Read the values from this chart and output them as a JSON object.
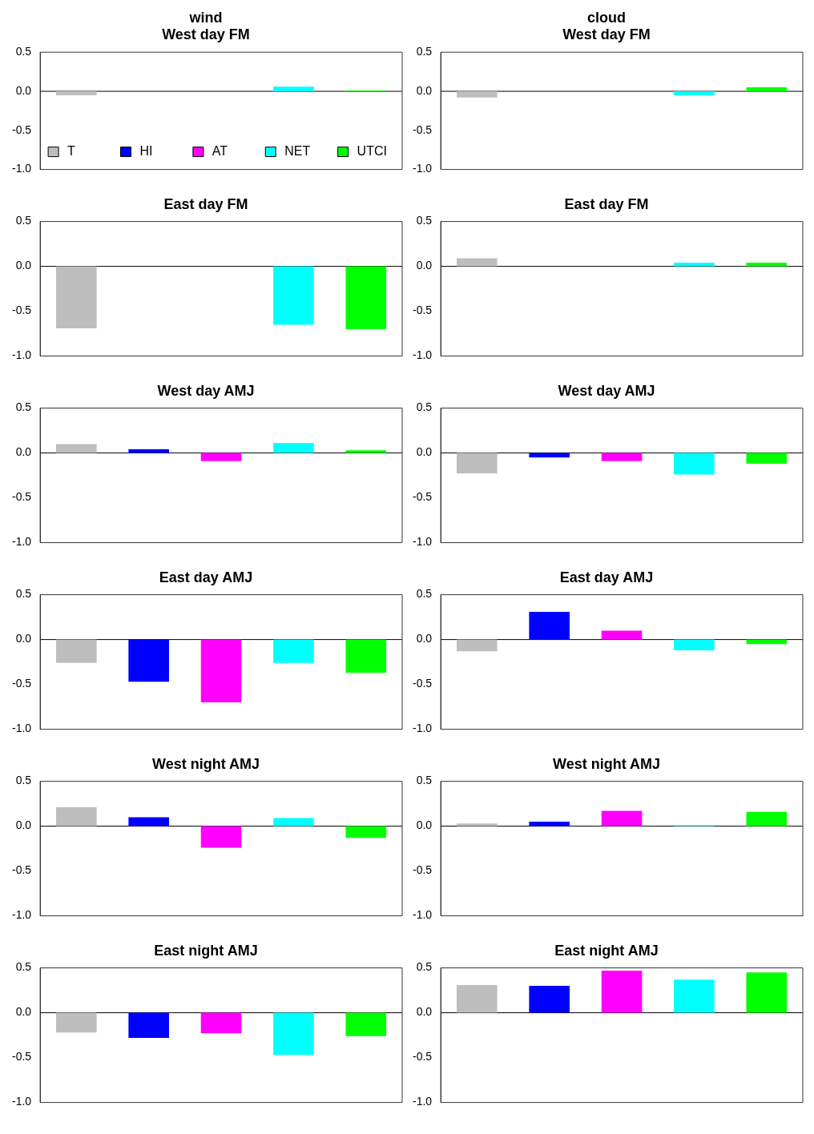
{
  "chart_data": [
    {
      "type": "bar",
      "title": "wind",
      "subtitle": "West day FM",
      "categories": [
        null
      ],
      "ylim": [
        -1.0,
        0.5
      ],
      "yticks": [
        {
          "value": 0.5,
          "label": "0.5"
        },
        {
          "value": 0,
          "label": "0.0"
        },
        {
          "value": -0.5,
          "label": "-0.5"
        },
        {
          "value": -1.0,
          "label": "-1.0"
        }
      ],
      "grid": false,
      "legend": "bottom",
      "ref_lines": [
        {
          "axis": "y",
          "value": 0,
          "color": "#000000"
        }
      ],
      "series": [
        {
          "name": "T",
          "color": "#bebebe",
          "values": [
            -0.05
          ]
        },
        {
          "name": "HI",
          "color": "#0000ff",
          "values": [
            null
          ]
        },
        {
          "name": "AT",
          "color": "#ff00ff",
          "values": [
            null
          ]
        },
        {
          "name": "NET",
          "color": "#00ffff",
          "values": [
            0.06
          ]
        },
        {
          "name": "UTCI",
          "color": "#00ff00",
          "values": [
            0.01
          ]
        }
      ]
    },
    {
      "type": "bar",
      "title": "cloud",
      "subtitle": "West day FM",
      "categories": [
        null
      ],
      "ylim": [
        -1.0,
        0.5
      ],
      "yticks": [
        {
          "value": 0.5,
          "label": "0.5"
        },
        {
          "value": 0,
          "label": "0.0"
        },
        {
          "value": -0.5,
          "label": "-0.5"
        },
        {
          "value": -1.0,
          "label": "-1.0"
        }
      ],
      "grid": false,
      "ref_lines": [
        {
          "axis": "y",
          "value": 0,
          "color": "#000000"
        }
      ],
      "series": [
        {
          "color": "#bebebe",
          "values": [
            -0.08
          ]
        },
        {
          "color": "#0000ff",
          "values": [
            null
          ]
        },
        {
          "color": "#ff00ff",
          "values": [
            null
          ]
        },
        {
          "color": "#00ffff",
          "values": [
            -0.05
          ]
        },
        {
          "color": "#00ff00",
          "values": [
            0.05
          ]
        }
      ]
    },
    {
      "type": "bar",
      "title": "East day FM",
      "categories": [
        null
      ],
      "ylim": [
        -1.0,
        0.5
      ],
      "yticks": [
        {
          "value": 0.5,
          "label": "0.5"
        },
        {
          "value": 0,
          "label": "0.0"
        },
        {
          "value": -0.5,
          "label": "-0.5"
        },
        {
          "value": -1.0,
          "label": "-1.0"
        }
      ],
      "grid": false,
      "ref_lines": [
        {
          "axis": "y",
          "value": 0,
          "color": "#000000"
        }
      ],
      "series": [
        {
          "color": "#bebebe",
          "values": [
            -0.69
          ]
        },
        {
          "color": "#0000ff",
          "values": [
            null
          ]
        },
        {
          "color": "#ff00ff",
          "values": [
            null
          ]
        },
        {
          "color": "#00ffff",
          "values": [
            -0.65
          ]
        },
        {
          "color": "#00ff00",
          "values": [
            -0.7
          ]
        }
      ]
    },
    {
      "type": "bar",
      "title": "East day FM",
      "categories": [
        null
      ],
      "ylim": [
        -1.0,
        0.5
      ],
      "yticks": [
        {
          "value": 0.5,
          "label": "0.5"
        },
        {
          "value": 0,
          "label": "0.0"
        },
        {
          "value": -0.5,
          "label": "-0.5"
        },
        {
          "value": -1.0,
          "label": "-1.0"
        }
      ],
      "grid": false,
      "ref_lines": [
        {
          "axis": "y",
          "value": 0,
          "color": "#000000"
        }
      ],
      "series": [
        {
          "color": "#bebebe",
          "values": [
            0.09
          ]
        },
        {
          "color": "#0000ff",
          "values": [
            null
          ]
        },
        {
          "color": "#ff00ff",
          "values": [
            null
          ]
        },
        {
          "color": "#00ffff",
          "values": [
            0.04
          ]
        },
        {
          "color": "#00ff00",
          "values": [
            0.04
          ]
        }
      ]
    },
    {
      "type": "bar",
      "title": "West day AMJ",
      "categories": [
        null
      ],
      "ylim": [
        -1.0,
        0.5
      ],
      "yticks": [
        {
          "value": 0.5,
          "label": "0.5"
        },
        {
          "value": 0,
          "label": "0.0"
        },
        {
          "value": -0.5,
          "label": "-0.5"
        },
        {
          "value": -1.0,
          "label": "-1.0"
        }
      ],
      "grid": false,
      "ref_lines": [
        {
          "axis": "y",
          "value": 0,
          "color": "#000000"
        }
      ],
      "series": [
        {
          "color": "#bebebe",
          "values": [
            0.1
          ]
        },
        {
          "color": "#0000ff",
          "values": [
            0.04
          ]
        },
        {
          "color": "#ff00ff",
          "values": [
            -0.09
          ]
        },
        {
          "color": "#00ffff",
          "values": [
            0.11
          ]
        },
        {
          "color": "#00ff00",
          "values": [
            0.03
          ]
        }
      ]
    },
    {
      "type": "bar",
      "title": "West day AMJ",
      "categories": [
        null
      ],
      "ylim": [
        -1.0,
        0.5
      ],
      "yticks": [
        {
          "value": 0.5,
          "label": "0.5"
        },
        {
          "value": 0,
          "label": "0.0"
        },
        {
          "value": -0.5,
          "label": "-0.5"
        },
        {
          "value": -1.0,
          "label": "-1.0"
        }
      ],
      "grid": false,
      "ref_lines": [
        {
          "axis": "y",
          "value": 0,
          "color": "#000000"
        }
      ],
      "series": [
        {
          "color": "#bebebe",
          "values": [
            -0.23
          ]
        },
        {
          "color": "#0000ff",
          "values": [
            -0.05
          ]
        },
        {
          "color": "#ff00ff",
          "values": [
            -0.09
          ]
        },
        {
          "color": "#00ffff",
          "values": [
            -0.24
          ]
        },
        {
          "color": "#00ff00",
          "values": [
            -0.12
          ]
        }
      ]
    },
    {
      "type": "bar",
      "title": "East day AMJ",
      "categories": [
        null
      ],
      "ylim": [
        -1.0,
        0.5
      ],
      "yticks": [
        {
          "value": 0.5,
          "label": "0.5"
        },
        {
          "value": 0,
          "label": "0.0"
        },
        {
          "value": -0.5,
          "label": "-0.5"
        },
        {
          "value": -1.0,
          "label": "-1.0"
        }
      ],
      "grid": false,
      "ref_lines": [
        {
          "axis": "y",
          "value": 0,
          "color": "#000000"
        }
      ],
      "series": [
        {
          "color": "#bebebe",
          "values": [
            -0.26
          ]
        },
        {
          "color": "#0000ff",
          "values": [
            -0.47
          ]
        },
        {
          "color": "#ff00ff",
          "values": [
            -0.7
          ]
        },
        {
          "color": "#00ffff",
          "values": [
            -0.26
          ]
        },
        {
          "color": "#00ff00",
          "values": [
            -0.37
          ]
        }
      ]
    },
    {
      "type": "bar",
      "title": "East day AMJ",
      "categories": [
        null
      ],
      "ylim": [
        -1.0,
        0.5
      ],
      "yticks": [
        {
          "value": 0.5,
          "label": "0.5"
        },
        {
          "value": 0,
          "label": "0.0"
        },
        {
          "value": -0.5,
          "label": "-0.5"
        },
        {
          "value": -1.0,
          "label": "-1.0"
        }
      ],
      "grid": false,
      "ref_lines": [
        {
          "axis": "y",
          "value": 0,
          "color": "#000000"
        }
      ],
      "series": [
        {
          "color": "#bebebe",
          "values": [
            -0.13
          ]
        },
        {
          "color": "#0000ff",
          "values": [
            0.31
          ]
        },
        {
          "color": "#ff00ff",
          "values": [
            0.1
          ]
        },
        {
          "color": "#00ffff",
          "values": [
            -0.12
          ]
        },
        {
          "color": "#00ff00",
          "values": [
            -0.05
          ]
        }
      ]
    },
    {
      "type": "bar",
      "title": "West night AMJ",
      "categories": [
        null
      ],
      "ylim": [
        -1.0,
        0.5
      ],
      "yticks": [
        {
          "value": 0.5,
          "label": "0.5"
        },
        {
          "value": 0,
          "label": "0.0"
        },
        {
          "value": -0.5,
          "label": "-0.5"
        },
        {
          "value": -1.0,
          "label": "-1.0"
        }
      ],
      "grid": false,
      "ref_lines": [
        {
          "axis": "y",
          "value": 0,
          "color": "#000000"
        }
      ],
      "series": [
        {
          "color": "#bebebe",
          "values": [
            0.21
          ]
        },
        {
          "color": "#0000ff",
          "values": [
            0.1
          ]
        },
        {
          "color": "#ff00ff",
          "values": [
            -0.24
          ]
        },
        {
          "color": "#00ffff",
          "values": [
            0.09
          ]
        },
        {
          "color": "#00ff00",
          "values": [
            -0.13
          ]
        }
      ]
    },
    {
      "type": "bar",
      "title": "West night AMJ",
      "categories": [
        null
      ],
      "ylim": [
        -1.0,
        0.5
      ],
      "yticks": [
        {
          "value": 0.5,
          "label": "0.5"
        },
        {
          "value": 0,
          "label": "0.0"
        },
        {
          "value": -0.5,
          "label": "-0.5"
        },
        {
          "value": -1.0,
          "label": "-1.0"
        }
      ],
      "grid": false,
      "ref_lines": [
        {
          "axis": "y",
          "value": 0,
          "color": "#000000"
        }
      ],
      "series": [
        {
          "color": "#bebebe",
          "values": [
            0.03
          ]
        },
        {
          "color": "#0000ff",
          "values": [
            0.05
          ]
        },
        {
          "color": "#ff00ff",
          "values": [
            0.17
          ]
        },
        {
          "color": "#00ffff",
          "values": [
            0.01
          ]
        },
        {
          "color": "#00ff00",
          "values": [
            0.16
          ]
        }
      ]
    },
    {
      "type": "bar",
      "title": "East night AMJ",
      "categories": [
        null
      ],
      "ylim": [
        -1.0,
        0.5
      ],
      "yticks": [
        {
          "value": 0.5,
          "label": "0.5"
        },
        {
          "value": 0,
          "label": "0.0"
        },
        {
          "value": -0.5,
          "label": "-0.5"
        },
        {
          "value": -1.0,
          "label": "-1.0"
        }
      ],
      "grid": false,
      "ref_lines": [
        {
          "axis": "y",
          "value": 0,
          "color": "#000000"
        }
      ],
      "series": [
        {
          "color": "#bebebe",
          "values": [
            -0.22
          ]
        },
        {
          "color": "#0000ff",
          "values": [
            -0.28
          ]
        },
        {
          "color": "#ff00ff",
          "values": [
            -0.23
          ]
        },
        {
          "color": "#00ffff",
          "values": [
            -0.47
          ]
        },
        {
          "color": "#00ff00",
          "values": [
            -0.26
          ]
        }
      ]
    },
    {
      "type": "bar",
      "title": "East night AMJ",
      "categories": [
        null
      ],
      "ylim": [
        -1.0,
        0.5
      ],
      "yticks": [
        {
          "value": 0.5,
          "label": "0.5"
        },
        {
          "value": 0,
          "label": "0.0"
        },
        {
          "value": -0.5,
          "label": "-0.5"
        },
        {
          "value": -1.0,
          "label": "-1.0"
        }
      ],
      "grid": false,
      "ref_lines": [
        {
          "axis": "y",
          "value": 0,
          "color": "#000000"
        }
      ],
      "series": [
        {
          "color": "#bebebe",
          "values": [
            0.31
          ]
        },
        {
          "color": "#0000ff",
          "values": [
            0.3
          ]
        },
        {
          "color": "#ff00ff",
          "values": [
            0.47
          ]
        },
        {
          "color": "#00ffff",
          "values": [
            0.37
          ]
        },
        {
          "color": "#00ff00",
          "values": [
            0.45
          ]
        }
      ]
    }
  ]
}
